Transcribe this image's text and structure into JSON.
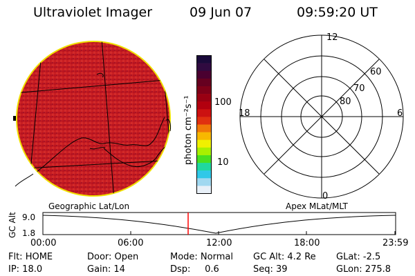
{
  "header": {
    "title": "Ultraviolet Imager",
    "date": "09 Jun 07",
    "time": "09:59:20 UT"
  },
  "colorbar": {
    "unit_label": "photon cm⁻²s⁻¹",
    "tick_labels": [
      "100",
      "10"
    ],
    "colors": [
      "#1a0a3a",
      "#300a40",
      "#4a0030",
      "#660020",
      "#7f0018",
      "#990012",
      "#b2000f",
      "#cc1111",
      "#e03010",
      "#f07808",
      "#f8b800",
      "#f0f000",
      "#a8f000",
      "#48e020",
      "#20d8a0",
      "#30c8e8",
      "#a0d8f0",
      "#e8f0f8"
    ]
  },
  "left_panel": {
    "label": "Geographic Lat/Lon",
    "fill_color": "#cc2424",
    "rim_color": "#f0e000"
  },
  "right_panel": {
    "label": "Apex MLat/MLT",
    "mlt_labels": {
      "top": "12",
      "left": "18",
      "right": "6",
      "bottom": "0"
    },
    "lat_labels": [
      "60",
      "70",
      "80"
    ]
  },
  "altitude_strip": {
    "axis_label": "GC Alt",
    "y_ticks": [
      "9.0",
      "1.8"
    ],
    "x_ticks": [
      "00:00",
      "06:00",
      "12:00",
      "18:00",
      "23:59"
    ],
    "cursor_color": "#ff0000"
  },
  "status": {
    "row1": {
      "flt": "Flt: HOME",
      "door": "Door: Open",
      "mode": "Mode: Normal",
      "gcalt": "GC Alt: 4.2 Re",
      "glat": "GLat:  -2.5"
    },
    "row2": {
      "ip": "IP: 18.0",
      "gain": "Gain: 14",
      "dsp": "Dsp:     0.6",
      "seq": "Seq: 39",
      "glon": "GLon: 275.8"
    }
  }
}
